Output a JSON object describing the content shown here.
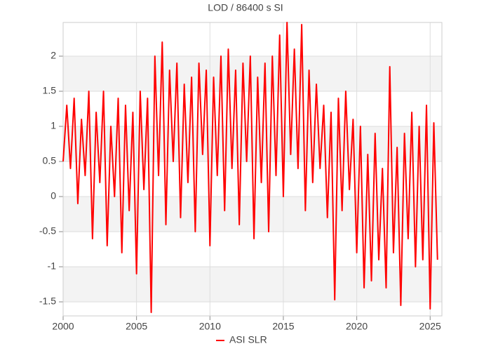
{
  "chart_data": {
    "type": "line",
    "title": "LOD / 86400 s SI",
    "x": [
      2000,
      2000.25,
      2000.5,
      2000.75,
      2001,
      2001.25,
      2001.5,
      2001.75,
      2002,
      2002.25,
      2002.5,
      2002.75,
      2003,
      2003.25,
      2003.5,
      2003.75,
      2004,
      2004.25,
      2004.5,
      2004.75,
      2005,
      2005.25,
      2005.5,
      2005.75,
      2006,
      2006.25,
      2006.5,
      2006.75,
      2007,
      2007.25,
      2007.5,
      2007.75,
      2008,
      2008.25,
      2008.5,
      2008.75,
      2009,
      2009.25,
      2009.5,
      2009.75,
      2010,
      2010.25,
      2010.5,
      2010.75,
      2011,
      2011.25,
      2011.5,
      2011.75,
      2012,
      2012.25,
      2012.5,
      2012.75,
      2013,
      2013.25,
      2013.5,
      2013.75,
      2014,
      2014.25,
      2014.5,
      2014.75,
      2015,
      2015.25,
      2015.5,
      2015.75,
      2016,
      2016.25,
      2016.5,
      2016.75,
      2017,
      2017.25,
      2017.5,
      2017.75,
      2018,
      2018.25,
      2018.5,
      2018.75,
      2019,
      2019.25,
      2019.5,
      2019.75,
      2020,
      2020.25,
      2020.5,
      2020.75,
      2021,
      2021.25,
      2021.5,
      2021.75,
      2022,
      2022.25,
      2022.5,
      2022.75,
      2023,
      2023.25,
      2023.5,
      2023.75,
      2024,
      2024.25,
      2024.5,
      2024.75,
      2025,
      2025.25,
      2025.5
    ],
    "series": [
      {
        "name": "ASI SLR",
        "color": "#ff0000",
        "values": [
          0.5,
          1.3,
          0.4,
          1.4,
          -0.1,
          1.1,
          0.3,
          1.5,
          -0.6,
          1.2,
          0.2,
          1.5,
          -0.7,
          1.0,
          0.0,
          1.4,
          -0.8,
          1.3,
          -0.2,
          1.2,
          -1.1,
          1.5,
          0.1,
          1.4,
          -1.65,
          2.0,
          0.3,
          2.2,
          -0.4,
          1.8,
          0.5,
          1.9,
          -0.3,
          1.6,
          0.2,
          1.7,
          -0.5,
          1.9,
          0.6,
          1.8,
          -0.7,
          1.7,
          0.3,
          2.0,
          -0.2,
          2.1,
          0.4,
          1.8,
          -0.4,
          1.9,
          0.5,
          2.0,
          -0.6,
          1.7,
          0.2,
          1.9,
          -0.5,
          2.0,
          0.3,
          2.3,
          0.0,
          2.48,
          0.6,
          2.1,
          0.4,
          2.45,
          -0.2,
          1.8,
          0.2,
          1.6,
          0.4,
          1.3,
          -0.3,
          1.2,
          -1.47,
          1.4,
          -0.2,
          1.5,
          0.1,
          1.1,
          -0.8,
          1.0,
          -1.3,
          0.6,
          -1.2,
          0.9,
          -0.9,
          0.4,
          -1.3,
          1.85,
          -0.8,
          0.7,
          -1.55,
          0.9,
          -0.6,
          1.2,
          -1.0,
          1.0,
          -0.9,
          1.3,
          -1.6,
          1.05,
          -0.9
        ]
      }
    ],
    "xlim": [
      2000,
      2025.8
    ],
    "xticks": [
      2000,
      2005,
      2010,
      2015,
      2020,
      2025
    ],
    "ylim": [
      -1.7,
      2.48
    ],
    "yticks": [
      -1.5,
      -1,
      -0.5,
      0,
      0.5,
      1,
      1.5,
      2
    ],
    "grid": true
  }
}
